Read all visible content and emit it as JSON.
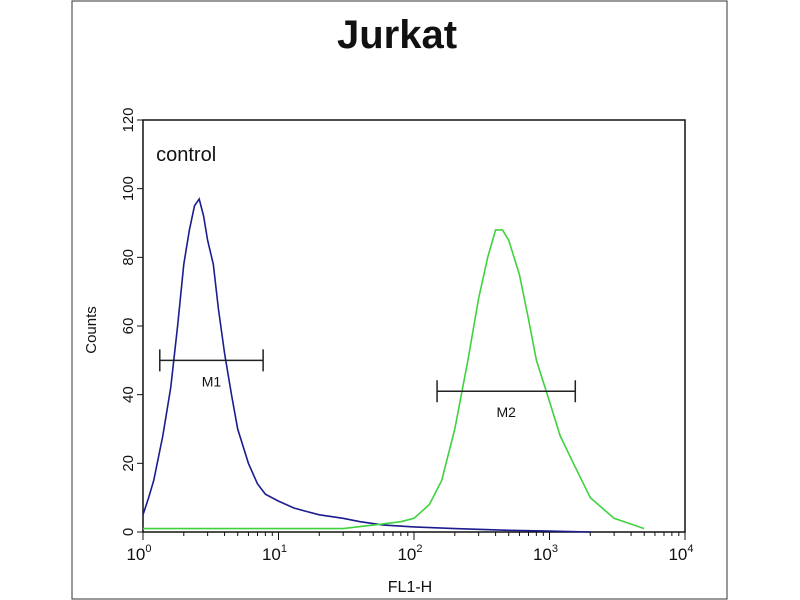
{
  "chart_data": {
    "type": "line",
    "title": "Jurkat",
    "xlabel": "FL1-H",
    "ylabel": "Counts",
    "xscale": "log",
    "xlim": [
      1,
      10000
    ],
    "xticks": [
      {
        "value": 1,
        "label": "10",
        "exponent": "0"
      },
      {
        "value": 10,
        "label": "10",
        "exponent": "1"
      },
      {
        "value": 100,
        "label": "10",
        "exponent": "2"
      },
      {
        "value": 1000,
        "label": "10",
        "exponent": "3"
      },
      {
        "value": 10000,
        "label": "10",
        "exponent": "4"
      }
    ],
    "ylim": [
      0,
      120
    ],
    "yticks": [
      0,
      20,
      40,
      60,
      80,
      100,
      120
    ],
    "annotations": [
      {
        "text": "control",
        "x": 1.25,
        "y": 108
      }
    ],
    "markers": [
      {
        "label": "M1",
        "x": [
          1.33,
          7.7
        ],
        "y": 50
      },
      {
        "label": "M2",
        "x": [
          148,
          1550
        ],
        "y": 41
      }
    ],
    "series": [
      {
        "name": "control",
        "color": "#1c1c8f",
        "x": [
          1.0,
          1.1,
          1.2,
          1.4,
          1.6,
          1.8,
          2.0,
          2.2,
          2.4,
          2.6,
          2.8,
          3.0,
          3.3,
          3.6,
          4.0,
          4.5,
          5.0,
          6.0,
          7.0,
          8.0,
          10,
          13,
          16,
          20,
          30,
          40,
          60,
          100,
          200,
          500,
          1000,
          2000
        ],
        "values": [
          5,
          10,
          15,
          28,
          42,
          60,
          78,
          88,
          95,
          97,
          92,
          85,
          78,
          65,
          52,
          40,
          30,
          20,
          14,
          11,
          9,
          7,
          6,
          5,
          4,
          3,
          2,
          1.5,
          1,
          0.5,
          0.3,
          0
        ]
      },
      {
        "color": "#3fd23f",
        "x": [
          1,
          3,
          10,
          30,
          50,
          80,
          100,
          130,
          160,
          200,
          250,
          300,
          350,
          400,
          450,
          500,
          600,
          700,
          800,
          1000,
          1200,
          1500,
          2000,
          3000,
          5000
        ],
        "values": [
          1,
          1,
          1,
          1,
          2,
          3,
          4,
          8,
          15,
          30,
          50,
          68,
          80,
          88,
          88,
          85,
          75,
          62,
          50,
          38,
          28,
          20,
          10,
          4,
          1
        ]
      }
    ]
  }
}
